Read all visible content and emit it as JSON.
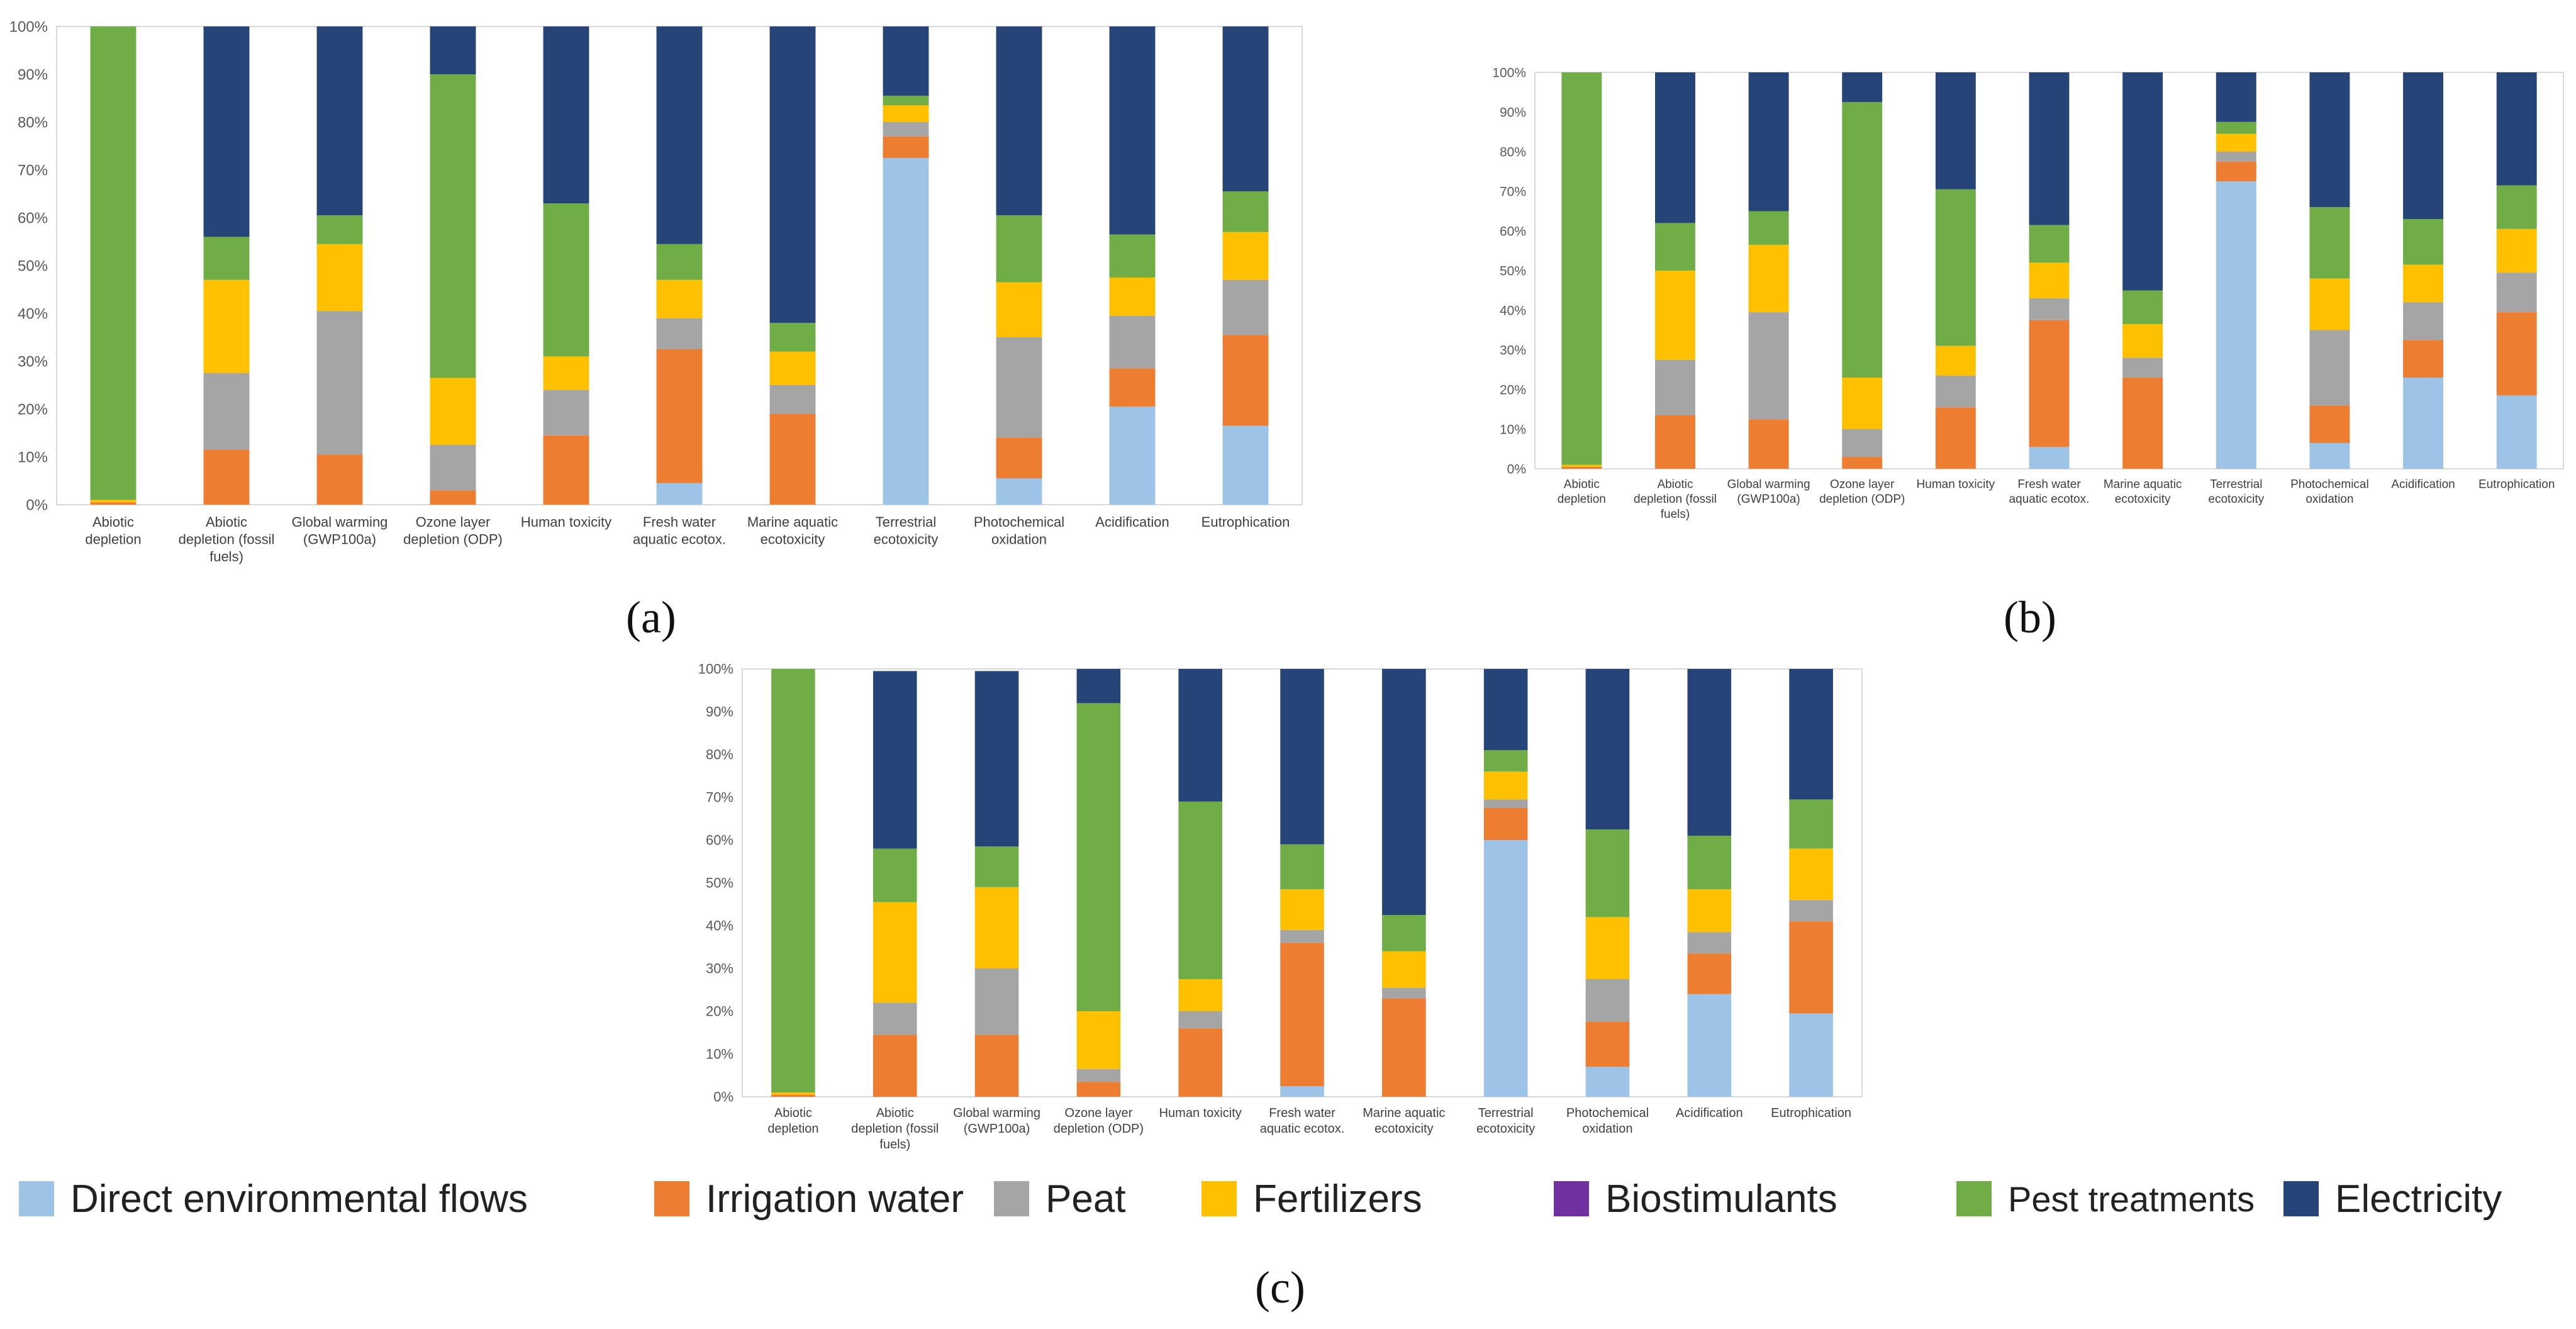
{
  "panel_labels": [
    "(a)",
    "(b)",
    "(c)"
  ],
  "legend": [
    {
      "name": "Direct environmental flows",
      "color": "#9DC3E6"
    },
    {
      "name": "Irrigation water",
      "color": "#ED7D31"
    },
    {
      "name": "Peat",
      "color": "#A5A5A5"
    },
    {
      "name": "Fertilizers",
      "color": "#FFC000"
    },
    {
      "name": "Biostimulants",
      "color": "#7030A0"
    },
    {
      "name": "Pest treatments",
      "color": "#70AD47"
    },
    {
      "name": "Electricity",
      "color": "#264478"
    }
  ],
  "chart_data": [
    {
      "type": "bar",
      "stacked": true,
      "panel": "(a)",
      "ylim": [
        0,
        100
      ],
      "ytick_labels": [
        "0%",
        "10%",
        "20%",
        "30%",
        "40%",
        "50%",
        "60%",
        "70%",
        "80%",
        "90%",
        "100%"
      ],
      "categories": [
        [
          "Abiotic",
          "depletion"
        ],
        [
          "Abiotic",
          "depletion (fossil",
          "fuels)"
        ],
        [
          "Global warming",
          "(GWP100a)"
        ],
        [
          "Ozone layer",
          "depletion (ODP)"
        ],
        [
          "Human toxicity"
        ],
        [
          "Fresh water",
          "aquatic ecotox."
        ],
        [
          "Marine aquatic",
          "ecotoxicity"
        ],
        [
          "Terrestrial",
          "ecotoxicity"
        ],
        [
          "Photochemical",
          "oxidation"
        ],
        [
          "Acidification"
        ],
        [
          "Eutrophication"
        ]
      ],
      "series": [
        {
          "name": "Direct environmental flows",
          "values": [
            0,
            0,
            0,
            0,
            0,
            4.5,
            0,
            72.5,
            5.5,
            20.5,
            16.5
          ]
        },
        {
          "name": "Irrigation water",
          "values": [
            0.5,
            11.5,
            10.5,
            3,
            14.5,
            28,
            19,
            4.5,
            8.5,
            8,
            19
          ]
        },
        {
          "name": "Peat",
          "values": [
            0,
            16,
            30,
            9.5,
            9.5,
            6.5,
            6,
            3,
            21,
            11,
            11.5
          ]
        },
        {
          "name": "Fertilizers",
          "values": [
            0.5,
            19.5,
            14,
            14,
            7,
            8,
            7,
            3.5,
            11.5,
            8,
            10
          ]
        },
        {
          "name": "Biostimulants",
          "values": [
            0,
            0,
            0,
            0,
            0,
            0,
            0,
            0,
            0,
            0,
            0
          ]
        },
        {
          "name": "Pest treatments",
          "values": [
            99,
            9,
            6,
            63.5,
            32,
            7.5,
            6,
            2,
            14,
            9,
            8.5
          ]
        },
        {
          "name": "Electricity",
          "values": [
            0,
            44,
            39.5,
            10,
            37,
            45.5,
            62,
            14.5,
            39.5,
            43.5,
            34.5
          ]
        }
      ]
    },
    {
      "type": "bar",
      "stacked": true,
      "panel": "(b)",
      "ylim": [
        0,
        100
      ],
      "ytick_labels": [
        "0%",
        "10%",
        "20%",
        "30%",
        "40%",
        "50%",
        "60%",
        "70%",
        "80%",
        "90%",
        "100%"
      ],
      "categories": [
        [
          "Abiotic",
          "depletion"
        ],
        [
          "Abiotic",
          "depletion (fossil",
          "fuels)"
        ],
        [
          "Global warming",
          "(GWP100a)"
        ],
        [
          "Ozone layer",
          "depletion (ODP)"
        ],
        [
          "Human toxicity"
        ],
        [
          "Fresh water",
          "aquatic ecotox."
        ],
        [
          "Marine aquatic",
          "ecotoxicity"
        ],
        [
          "Terrestrial",
          "ecotoxicity"
        ],
        [
          "Photochemical",
          "oxidation"
        ],
        [
          "Acidification"
        ],
        [
          "Eutrophication"
        ]
      ],
      "series": [
        {
          "name": "Direct environmental flows",
          "values": [
            0,
            0,
            0,
            0,
            0,
            5.5,
            0,
            72.5,
            6.5,
            23,
            18.5
          ]
        },
        {
          "name": "Irrigation water",
          "values": [
            0.5,
            13.5,
            12.5,
            3,
            15.5,
            32,
            23,
            5,
            9.5,
            9.5,
            21
          ]
        },
        {
          "name": "Peat",
          "values": [
            0,
            14,
            27,
            7,
            8,
            5.5,
            5,
            2.5,
            19,
            9.5,
            10
          ]
        },
        {
          "name": "Fertilizers",
          "values": [
            0.5,
            22.5,
            17,
            13,
            7.5,
            9,
            8.5,
            4.5,
            13,
            9.5,
            11
          ]
        },
        {
          "name": "Biostimulants",
          "values": [
            0,
            0,
            0,
            0,
            0,
            0,
            0,
            0,
            0,
            0,
            0
          ]
        },
        {
          "name": "Pest treatments",
          "values": [
            99,
            12,
            8.5,
            69.5,
            39.5,
            9.5,
            8.5,
            3,
            18,
            11.5,
            11
          ]
        },
        {
          "name": "Electricity",
          "values": [
            0,
            38,
            35,
            7.5,
            29.5,
            38.5,
            55,
            12.5,
            34,
            37,
            28.5
          ]
        }
      ]
    },
    {
      "type": "bar",
      "stacked": true,
      "panel": "(c)",
      "ylim": [
        0,
        100
      ],
      "ytick_labels": [
        "0%",
        "10%",
        "20%",
        "30%",
        "40%",
        "50%",
        "60%",
        "70%",
        "80%",
        "90%",
        "100%"
      ],
      "categories": [
        [
          "Abiotic",
          "depletion"
        ],
        [
          "Abiotic",
          "depletion (fossil",
          "fuels)"
        ],
        [
          "Global warming",
          "(GWP100a)"
        ],
        [
          "Ozone layer",
          "depletion (ODP)"
        ],
        [
          "Human toxicity"
        ],
        [
          "Fresh water",
          "aquatic ecotox."
        ],
        [
          "Marine aquatic",
          "ecotoxicity"
        ],
        [
          "Terrestrial",
          "ecotoxicity"
        ],
        [
          "Photochemical",
          "oxidation"
        ],
        [
          "Acidification"
        ],
        [
          "Eutrophication"
        ]
      ],
      "series": [
        {
          "name": "Direct environmental flows",
          "values": [
            0,
            0,
            0,
            0,
            0,
            2.5,
            0,
            60,
            7,
            24,
            19.5
          ]
        },
        {
          "name": "Irrigation water",
          "values": [
            0.5,
            14.5,
            14.5,
            3.5,
            16,
            33.5,
            23,
            7.5,
            10.5,
            9.5,
            21.5
          ]
        },
        {
          "name": "Peat",
          "values": [
            0,
            7.5,
            15.5,
            3,
            4,
            3,
            2.5,
            2,
            10,
            5,
            5
          ]
        },
        {
          "name": "Fertilizers",
          "values": [
            0.5,
            23.5,
            19,
            13.5,
            7.5,
            9.5,
            8.5,
            6.5,
            14.5,
            10,
            12
          ]
        },
        {
          "name": "Biostimulants",
          "values": [
            0,
            0,
            0,
            0,
            0,
            0,
            0,
            0,
            0,
            0,
            0
          ]
        },
        {
          "name": "Pest treatments",
          "values": [
            99,
            12.5,
            9.5,
            72,
            41.5,
            10.5,
            8.5,
            5,
            20.5,
            12.5,
            11.5
          ]
        },
        {
          "name": "Electricity",
          "values": [
            0,
            41.5,
            41,
            8,
            31,
            41,
            57.5,
            19,
            37.5,
            39,
            30.5
          ]
        }
      ]
    }
  ]
}
